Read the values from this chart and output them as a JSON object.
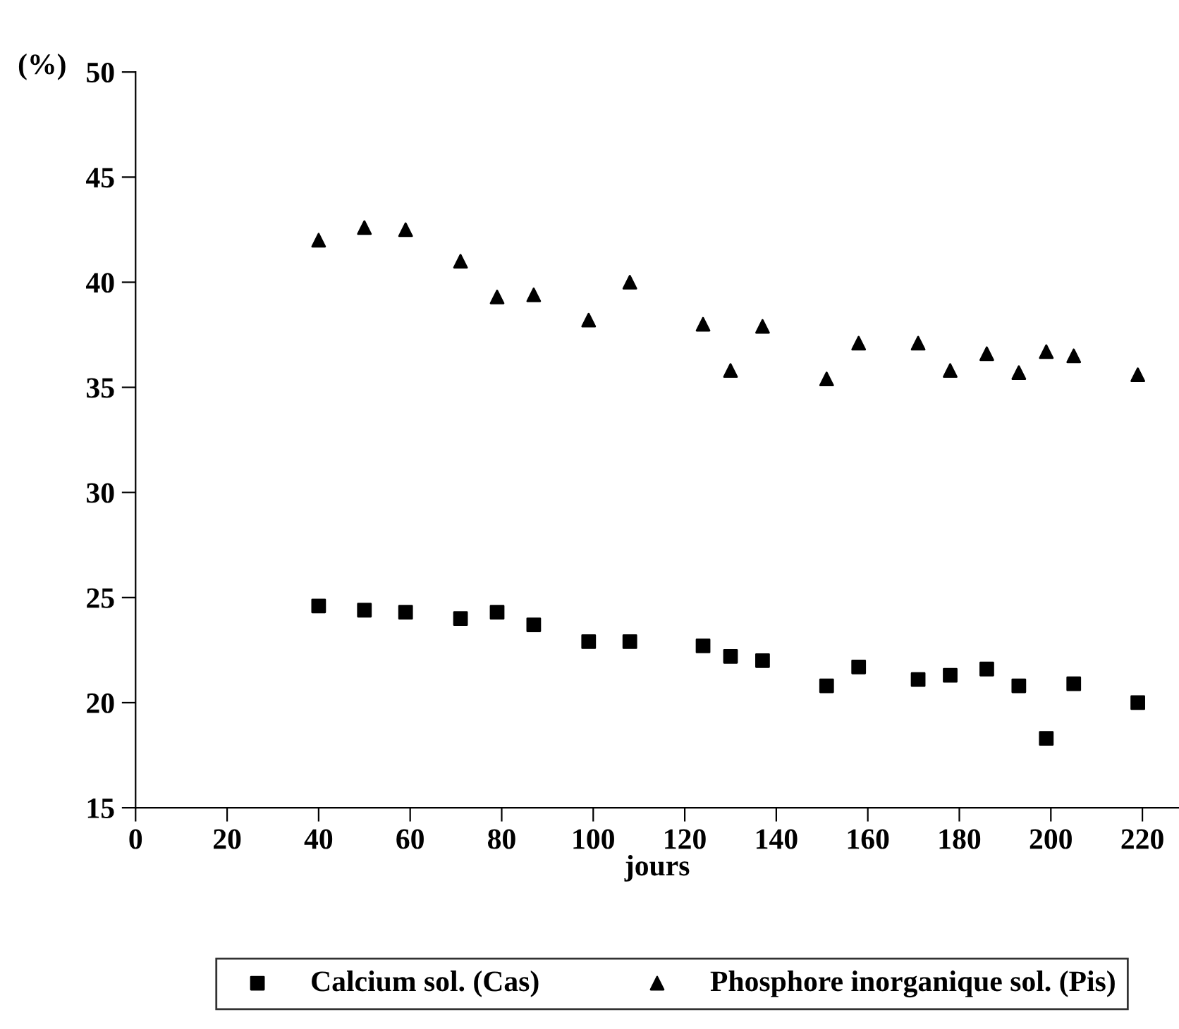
{
  "chart_data": {
    "type": "scatter",
    "xlabel": "jours",
    "ylabel": "(%)",
    "xlim": [
      0,
      228
    ],
    "ylim": [
      15,
      50
    ],
    "xticks": [
      0,
      20,
      40,
      60,
      80,
      100,
      120,
      140,
      160,
      180,
      200,
      220
    ],
    "yticks": [
      15,
      20,
      25,
      30,
      35,
      40,
      45,
      50
    ],
    "grid": false,
    "legend": "bottom",
    "series": [
      {
        "name": "Calcium sol. (Cas)",
        "color": "#000000",
        "marker": "square",
        "x": [
          40,
          50,
          59,
          71,
          79,
          87,
          99,
          108,
          124,
          130,
          137,
          151,
          158,
          171,
          178,
          186,
          193,
          199,
          205,
          219
        ],
        "values": [
          24.6,
          24.4,
          24.3,
          24.0,
          24.3,
          23.7,
          22.9,
          22.9,
          22.7,
          22.2,
          22.0,
          20.8,
          21.7,
          21.1,
          21.3,
          21.6,
          20.8,
          18.3,
          20.9,
          20.0
        ]
      },
      {
        "name": "Phosphore inorganique sol. (Pis)",
        "color": "#000000",
        "marker": "triangle",
        "x": [
          40,
          50,
          59,
          71,
          79,
          87,
          99,
          108,
          124,
          130,
          137,
          151,
          158,
          171,
          178,
          186,
          193,
          199,
          205,
          219
        ],
        "values": [
          42.0,
          42.6,
          42.5,
          41.0,
          39.3,
          39.4,
          38.2,
          40.0,
          38.0,
          35.8,
          37.9,
          35.4,
          37.1,
          37.1,
          35.8,
          36.6,
          35.7,
          36.7,
          36.5,
          35.6
        ]
      }
    ]
  }
}
